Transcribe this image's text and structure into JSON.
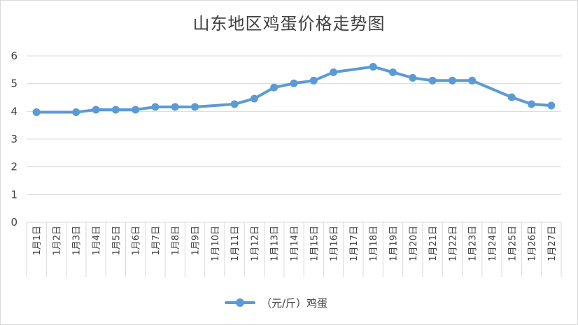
{
  "chart_data": {
    "type": "line",
    "title": "山东地区鸡蛋价格走势图",
    "xlabel": "",
    "ylabel": "",
    "ylim": [
      0,
      6
    ],
    "yticks": [
      0,
      1,
      2,
      3,
      4,
      5,
      6
    ],
    "grid": true,
    "legend_position": "bottom",
    "categories": [
      "1月1日",
      "1月2日",
      "1月3日",
      "1月4日",
      "1月5日",
      "1月6日",
      "1月7日",
      "1月8日",
      "1月9日",
      "1月10日",
      "1月11日",
      "1月12日",
      "1月13日",
      "1月14日",
      "1月15日",
      "1月16日",
      "1月17日",
      "1月18日",
      "1月19日",
      "1月20日",
      "1月21日",
      "1月22日",
      "1月23日",
      "1月24日",
      "1月25日",
      "1月26日",
      "1月27日"
    ],
    "series": [
      {
        "name": "（元/斤）鸡蛋",
        "color": "#5b9bd5",
        "values": [
          3.97,
          null,
          3.97,
          4.06,
          4.06,
          4.06,
          4.16,
          4.16,
          4.16,
          null,
          4.26,
          4.46,
          4.86,
          5.01,
          5.11,
          5.41,
          null,
          5.61,
          5.41,
          5.21,
          5.11,
          5.11,
          5.11,
          null,
          4.51,
          4.26,
          4.21
        ]
      }
    ]
  }
}
